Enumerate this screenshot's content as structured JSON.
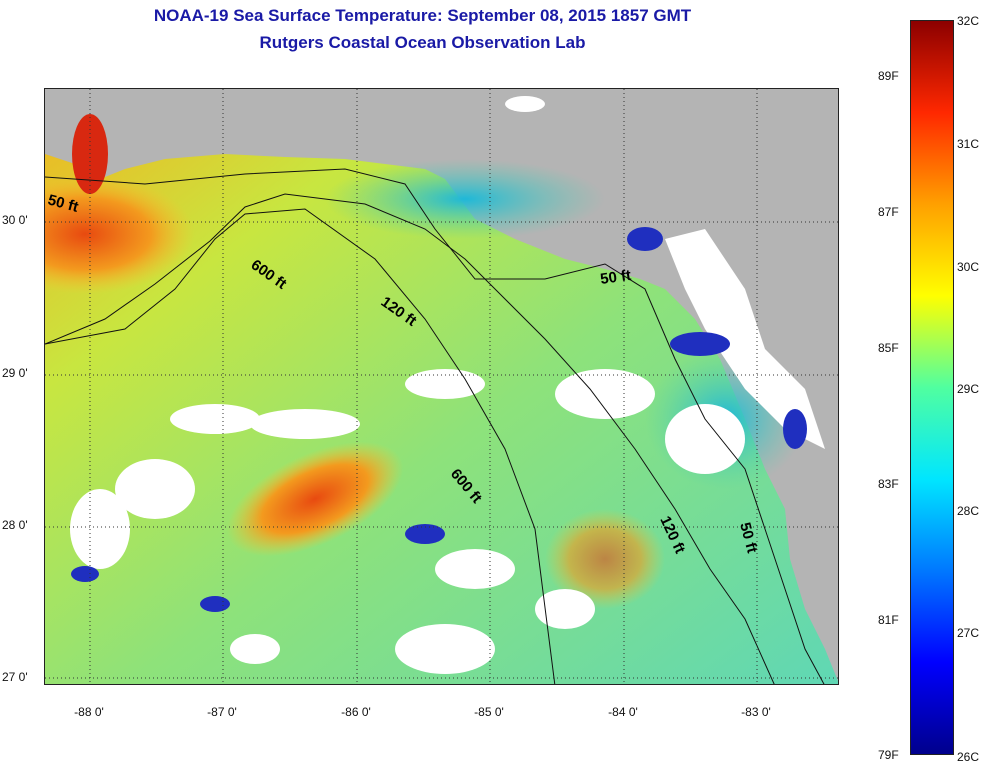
{
  "header": {
    "title_line1": "NOAA-19 Sea Surface Temperature:  September 08, 2015 1857 GMT",
    "title_line2": "Rutgers Coastal Ocean Observation Lab"
  },
  "map": {
    "lat_labels": [
      "30 0'",
      "29 0'",
      "28 0'",
      "27 0'"
    ],
    "lon_labels": [
      "-88 0'",
      "-87 0'",
      "-86 0'",
      "-85 0'",
      "-84 0'",
      "-83 0'"
    ],
    "contour_labels": {
      "west_50": "50 ft",
      "depth_600_north": "600 ft",
      "depth_120_north": "120 ft",
      "east_50": "50 ft",
      "depth_600_south": "600 ft",
      "depth_120_south": "120 ft",
      "shelf_50_south": "50 ft"
    },
    "colors": {
      "land": "#b4b4b4",
      "cloud_mask": "#ffffff",
      "warm_water": "#f5a623",
      "cool_water": "#3cc8a0"
    }
  },
  "colorbar": {
    "celsius_labels": [
      "32C",
      "31C",
      "30C",
      "29C",
      "28C",
      "27C",
      "26C"
    ],
    "fahrenheit_labels": [
      "89F",
      "87F",
      "85F",
      "83F",
      "81F",
      "79F"
    ],
    "range_c": [
      26,
      32
    ],
    "gradient_colors": [
      "#00008c",
      "#0000ff",
      "#0078ff",
      "#00e6ff",
      "#50ffa0",
      "#ffff00",
      "#ffa000",
      "#ff2800",
      "#8c0000"
    ]
  }
}
